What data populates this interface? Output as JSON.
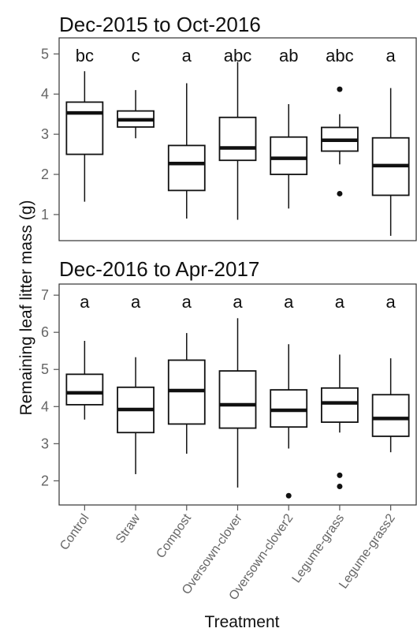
{
  "chart_data": {
    "type": "boxplot",
    "xlabel": "Treatment",
    "ylabel": "Remaining leaf litter mass (g)",
    "categories": [
      "Control",
      "Straw",
      "Compost",
      "Oversown-clover",
      "Oversown-clover2",
      "Legume-grass",
      "Legume-grass2"
    ],
    "panels": [
      {
        "title": "Dec-2015 to Oct-2016",
        "ylim": [
          0.35,
          5.4
        ],
        "yticks": [
          "1",
          "2",
          "3",
          "4",
          "5"
        ],
        "letters": [
          "bc",
          "c",
          "a",
          "abc",
          "ab",
          "abc",
          "a"
        ],
        "boxes": [
          {
            "whisker_low": 1.32,
            "q1": 2.5,
            "median": 3.53,
            "q3": 3.8,
            "whisker_high": 4.57,
            "outliers": []
          },
          {
            "whisker_low": 2.9,
            "q1": 3.18,
            "median": 3.36,
            "q3": 3.58,
            "whisker_high": 4.1,
            "outliers": []
          },
          {
            "whisker_low": 0.9,
            "q1": 1.6,
            "median": 2.27,
            "q3": 2.72,
            "whisker_high": 4.27,
            "outliers": []
          },
          {
            "whisker_low": 0.87,
            "q1": 2.35,
            "median": 2.66,
            "q3": 3.42,
            "whisker_high": 4.8,
            "outliers": []
          },
          {
            "whisker_low": 1.15,
            "q1": 2.0,
            "median": 2.4,
            "q3": 2.93,
            "whisker_high": 3.75,
            "outliers": []
          },
          {
            "whisker_low": 2.25,
            "q1": 2.58,
            "median": 2.85,
            "q3": 3.17,
            "whisker_high": 3.5,
            "outliers": [
              4.12,
              1.52
            ]
          },
          {
            "whisker_low": 0.47,
            "q1": 1.48,
            "median": 2.22,
            "q3": 2.91,
            "whisker_high": 4.15,
            "outliers": []
          }
        ]
      },
      {
        "title": "Dec-2016 to Apr-2017",
        "ylim": [
          1.35,
          7.3
        ],
        "yticks": [
          "2",
          "3",
          "4",
          "5",
          "6",
          "7"
        ],
        "letters": [
          "a",
          "a",
          "a",
          "a",
          "a",
          "a",
          "a"
        ],
        "boxes": [
          {
            "whisker_low": 3.65,
            "q1": 4.05,
            "median": 4.37,
            "q3": 4.87,
            "whisker_high": 5.77,
            "outliers": []
          },
          {
            "whisker_low": 2.18,
            "q1": 3.3,
            "median": 3.92,
            "q3": 4.52,
            "whisker_high": 5.33,
            "outliers": []
          },
          {
            "whisker_low": 2.73,
            "q1": 3.53,
            "median": 4.43,
            "q3": 5.25,
            "whisker_high": 5.98,
            "outliers": []
          },
          {
            "whisker_low": 1.82,
            "q1": 3.42,
            "median": 4.05,
            "q3": 4.96,
            "whisker_high": 6.38,
            "outliers": []
          },
          {
            "whisker_low": 2.87,
            "q1": 3.45,
            "median": 3.9,
            "q3": 4.45,
            "whisker_high": 5.68,
            "outliers": [
              1.6
            ]
          },
          {
            "whisker_low": 3.3,
            "q1": 3.58,
            "median": 4.1,
            "q3": 4.5,
            "whisker_high": 5.4,
            "outliers": [
              2.15,
              1.85
            ]
          },
          {
            "whisker_low": 2.77,
            "q1": 3.2,
            "median": 3.68,
            "q3": 4.32,
            "whisker_high": 5.3,
            "outliers": []
          }
        ]
      }
    ]
  }
}
